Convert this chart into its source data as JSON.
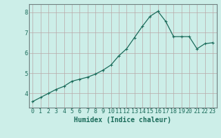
{
  "x": [
    0,
    1,
    2,
    3,
    4,
    5,
    6,
    7,
    8,
    9,
    10,
    11,
    12,
    13,
    14,
    15,
    16,
    17,
    18,
    19,
    20,
    21,
    22,
    23
  ],
  "y": [
    3.6,
    3.8,
    4.0,
    4.2,
    4.35,
    4.6,
    4.7,
    4.8,
    4.95,
    5.15,
    5.4,
    5.85,
    6.2,
    6.75,
    7.3,
    7.8,
    8.05,
    7.55,
    6.8,
    6.8,
    6.8,
    6.2,
    6.45,
    6.5
  ],
  "line_color": "#1a6b5a",
  "marker": "+",
  "marker_size": 3,
  "bg_color": "#cceee8",
  "grid_color": "#b8a8a8",
  "xlabel": "Humidex (Indice chaleur)",
  "xlabel_fontsize": 7,
  "tick_fontsize": 6,
  "ylim": [
    3.3,
    8.4
  ],
  "xlim": [
    -0.5,
    23.5
  ],
  "yticks": [
    4,
    5,
    6,
    7,
    8
  ],
  "xticks": [
    0,
    1,
    2,
    3,
    4,
    5,
    6,
    7,
    8,
    9,
    10,
    11,
    12,
    13,
    14,
    15,
    16,
    17,
    18,
    19,
    20,
    21,
    22,
    23
  ],
  "spine_color": "#708080"
}
